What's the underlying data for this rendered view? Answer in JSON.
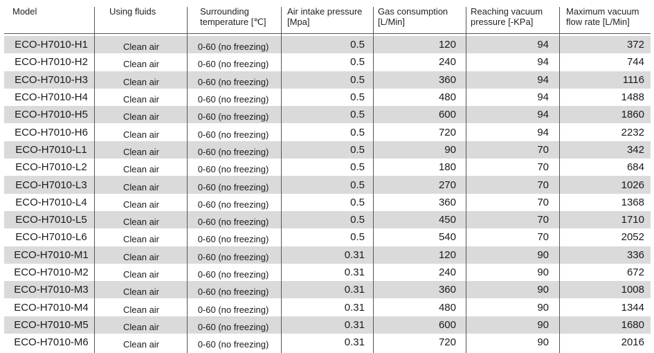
{
  "headers": {
    "model": "Model",
    "fluids": "Using fluids",
    "temp_line1": "Surrounding",
    "temp_line2": "temperature [℃]",
    "air_line1": "Air intake pressure",
    "air_line2": "[Mpa]",
    "gas_line1": "Gas consumption",
    "gas_line2": "[L/Min]",
    "vac_line1": "Reaching vacuum",
    "vac_line2": "pressure [-KPa]",
    "flow_line1": "Maximum vacuum",
    "flow_line2": "flow rate [L/Min]"
  },
  "rows": [
    {
      "model": "ECO-H7010-H1",
      "fluid": "Clean air",
      "temp": "0-60 (no freezing)",
      "air": "0.5",
      "gas": "120",
      "vac": "94",
      "flow": "372"
    },
    {
      "model": "ECO-H7010-H2",
      "fluid": "Clean air",
      "temp": "0-60 (no freezing)",
      "air": "0.5",
      "gas": "240",
      "vac": "94",
      "flow": "744"
    },
    {
      "model": "ECO-H7010-H3",
      "fluid": "Clean air",
      "temp": "0-60 (no freezing)",
      "air": "0.5",
      "gas": "360",
      "vac": "94",
      "flow": "1116"
    },
    {
      "model": "ECO-H7010-H4",
      "fluid": "Clean air",
      "temp": "0-60 (no freezing)",
      "air": "0.5",
      "gas": "480",
      "vac": "94",
      "flow": "1488"
    },
    {
      "model": "ECO-H7010-H5",
      "fluid": "Clean air",
      "temp": "0-60 (no freezing)",
      "air": "0.5",
      "gas": "600",
      "vac": "94",
      "flow": "1860"
    },
    {
      "model": "ECO-H7010-H6",
      "fluid": "Clean air",
      "temp": "0-60 (no freezing)",
      "air": "0.5",
      "gas": "720",
      "vac": "94",
      "flow": "2232"
    },
    {
      "model": "ECO-H7010-L1",
      "fluid": "Clean air",
      "temp": "0-60 (no freezing)",
      "air": "0.5",
      "gas": "90",
      "vac": "70",
      "flow": "342"
    },
    {
      "model": "ECO-H7010-L2",
      "fluid": "Clean air",
      "temp": "0-60 (no freezing)",
      "air": "0.5",
      "gas": "180",
      "vac": "70",
      "flow": "684"
    },
    {
      "model": "ECO-H7010-L3",
      "fluid": "Clean air",
      "temp": "0-60 (no freezing)",
      "air": "0.5",
      "gas": "270",
      "vac": "70",
      "flow": "1026"
    },
    {
      "model": "ECO-H7010-L4",
      "fluid": "Clean air",
      "temp": "0-60 (no freezing)",
      "air": "0.5",
      "gas": "360",
      "vac": "70",
      "flow": "1368"
    },
    {
      "model": "ECO-H7010-L5",
      "fluid": "Clean air",
      "temp": "0-60 (no freezing)",
      "air": "0.5",
      "gas": "450",
      "vac": "70",
      "flow": "1710"
    },
    {
      "model": "ECO-H7010-L6",
      "fluid": "Clean air",
      "temp": "0-60 (no freezing)",
      "air": "0.5",
      "gas": "540",
      "vac": "70",
      "flow": "2052"
    },
    {
      "model": "ECO-H7010-M1",
      "fluid": "Clean air",
      "temp": "0-60 (no freezing)",
      "air": "0.31",
      "gas": "120",
      "vac": "90",
      "flow": "336"
    },
    {
      "model": "ECO-H7010-M2",
      "fluid": "Clean air",
      "temp": "0-60 (no freezing)",
      "air": "0.31",
      "gas": "240",
      "vac": "90",
      "flow": "672"
    },
    {
      "model": "ECO-H7010-M3",
      "fluid": "Clean air",
      "temp": "0-60 (no freezing)",
      "air": "0.31",
      "gas": "360",
      "vac": "90",
      "flow": "1008"
    },
    {
      "model": "ECO-H7010-M4",
      "fluid": "Clean air",
      "temp": "0-60 (no freezing)",
      "air": "0.31",
      "gas": "480",
      "vac": "90",
      "flow": "1344"
    },
    {
      "model": "ECO-H7010-M5",
      "fluid": "Clean air",
      "temp": "0-60 (no freezing)",
      "air": "0.31",
      "gas": "600",
      "vac": "90",
      "flow": "1680"
    },
    {
      "model": "ECO-H7010-M6",
      "fluid": "Clean air",
      "temp": "0-60 (no freezing)",
      "air": "0.31",
      "gas": "720",
      "vac": "90",
      "flow": "2016"
    }
  ],
  "colors": {
    "shade": "#dadada",
    "rule": "#555555",
    "text": "#1a1a1a"
  }
}
